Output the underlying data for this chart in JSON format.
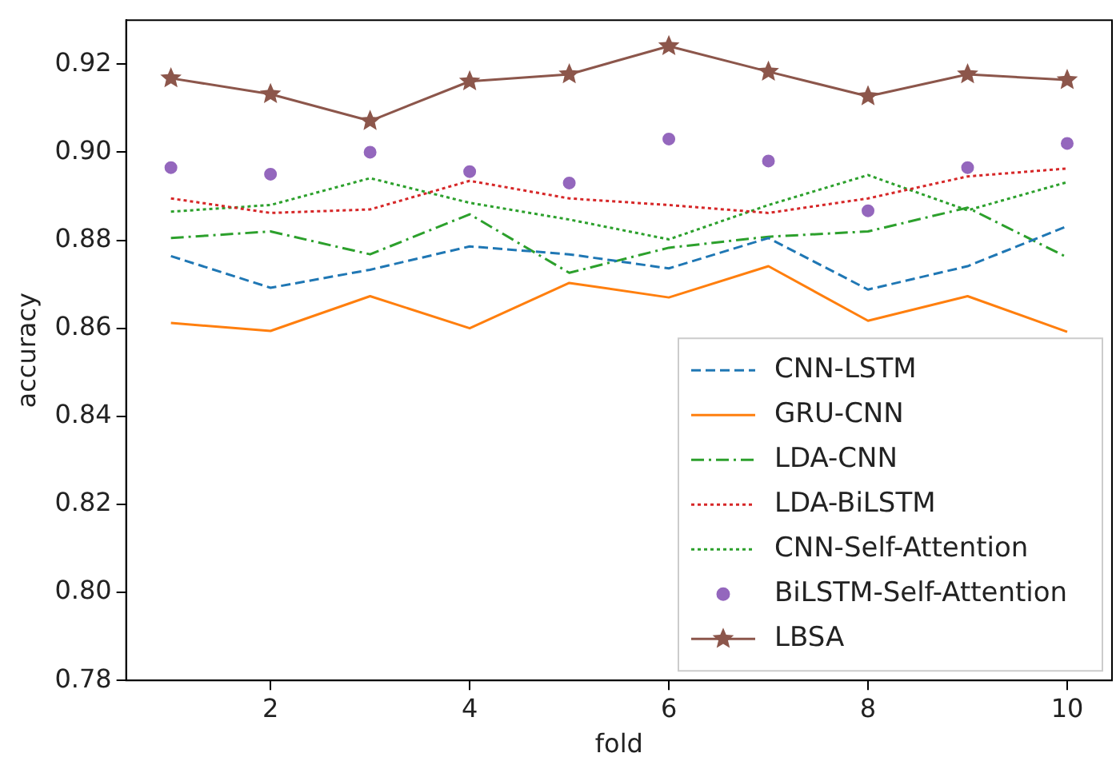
{
  "chart_data": {
    "type": "line",
    "xlabel": "fold",
    "ylabel": "accuracy",
    "x": [
      1,
      2,
      3,
      4,
      5,
      6,
      7,
      8,
      9,
      10
    ],
    "xlim": [
      0.55,
      10.45
    ],
    "xticks": [
      2,
      4,
      6,
      8,
      10
    ],
    "ylim": [
      0.78,
      0.93
    ],
    "yticks": [
      {
        "value": 0.78,
        "label": "0.78"
      },
      {
        "value": 0.8,
        "label": "0.80"
      },
      {
        "value": 0.82,
        "label": "0.82"
      },
      {
        "value": 0.84,
        "label": "0.84"
      },
      {
        "value": 0.86,
        "label": "0.86"
      },
      {
        "value": 0.88,
        "label": "0.88"
      },
      {
        "value": 0.9,
        "label": "0.90"
      },
      {
        "value": 0.92,
        "label": "0.92"
      }
    ],
    "grid": false,
    "legend": "bottom right",
    "series": [
      {
        "name": "CNN-LSTM",
        "color": "#1f77b4",
        "line_style": "dashed",
        "marker": "none",
        "values": [
          0.8764,
          0.8692,
          0.8733,
          0.8786,
          0.8768,
          0.8736,
          0.8805,
          0.8688,
          0.8741,
          0.8832
        ]
      },
      {
        "name": "GRU-CNN",
        "color": "#ff7f0e",
        "line_style": "solid",
        "marker": "none",
        "values": [
          0.8612,
          0.8594,
          0.8673,
          0.86,
          0.8703,
          0.867,
          0.8741,
          0.8617,
          0.8673,
          0.8592
        ]
      },
      {
        "name": "LDA-CNN",
        "color": "#2ca02c",
        "line_style": "dashdot",
        "marker": "none",
        "values": [
          0.8805,
          0.882,
          0.8768,
          0.8859,
          0.8726,
          0.8783,
          0.8808,
          0.882,
          0.8874,
          0.8761
        ]
      },
      {
        "name": "LDA-BiLSTM",
        "color": "#d62728",
        "line_style": "dotted",
        "marker": "none",
        "values": [
          0.8895,
          0.8862,
          0.887,
          0.8935,
          0.8895,
          0.888,
          0.8862,
          0.8895,
          0.8945,
          0.8963
        ]
      },
      {
        "name": "CNN-Self-Attention",
        "color": "#2ca02c",
        "line_style": "dotted",
        "marker": "none",
        "values": [
          0.8865,
          0.888,
          0.8941,
          0.8885,
          0.8847,
          0.8802,
          0.888,
          0.8948,
          0.8868,
          0.8932
        ]
      },
      {
        "name": "BiLSTM-Self-Attention",
        "type": "scatter",
        "color": "#9467bd",
        "marker": "circle",
        "values": [
          0.8965,
          0.895,
          0.9,
          0.8956,
          0.893,
          0.903,
          0.898,
          0.8867,
          0.8965,
          0.902
        ]
      },
      {
        "name": "LBSA",
        "color": "#8c564b",
        "line_style": "solid",
        "marker": "star",
        "values": [
          0.9168,
          0.9132,
          0.9071,
          0.9161,
          0.9177,
          0.9241,
          0.9183,
          0.9127,
          0.9177,
          0.9164
        ]
      }
    ]
  }
}
